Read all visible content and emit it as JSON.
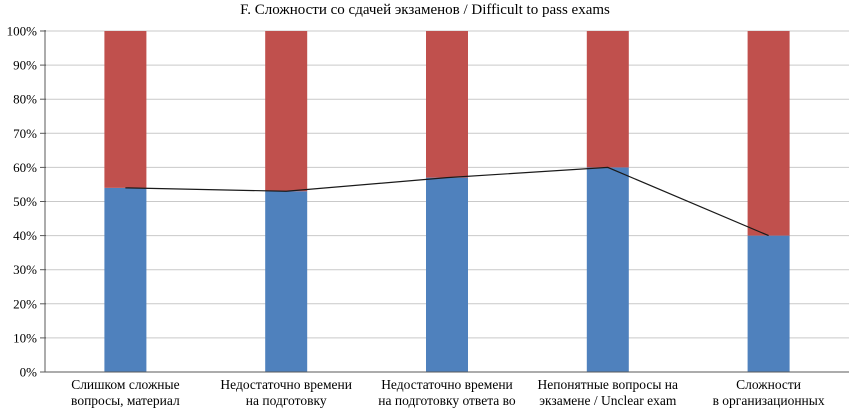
{
  "chart_data": {
    "type": "bar",
    "subtype": "stacked-100-percent-with-line",
    "title": "F. Сложности со сдачей экзаменов / Difficult to pass exams",
    "categories": [
      "Слишком сложные\nвопросы, материал",
      "Недостаточно времени\nна подготовку",
      "Недостаточно времени\nна подготовку ответа во",
      "Непонятные вопросы на\nэкзамене / Unclear exam",
      "Сложности\nв организационных"
    ],
    "series": [
      {
        "name": "blue-bottom-segment",
        "color": "#4F81BD",
        "values": [
          54,
          53,
          57,
          60,
          40
        ]
      },
      {
        "name": "red-top-segment",
        "color": "#C0504D",
        "values": [
          46,
          47,
          43,
          40,
          60
        ]
      }
    ],
    "line_series": {
      "name": "connector-line",
      "color": "#1a1a1a",
      "values": [
        54,
        53,
        57,
        60,
        40
      ]
    },
    "ylim": [
      0,
      100
    ],
    "ytick_labels": [
      "0%",
      "10%",
      "20%",
      "30%",
      "40%",
      "50%",
      "60%",
      "70%",
      "80%",
      "90%",
      "100%"
    ],
    "grid": true,
    "legend": "none",
    "colors": {
      "grid": "#c9c9c9",
      "axis": "#5a5a5a",
      "text": "#000000"
    }
  }
}
